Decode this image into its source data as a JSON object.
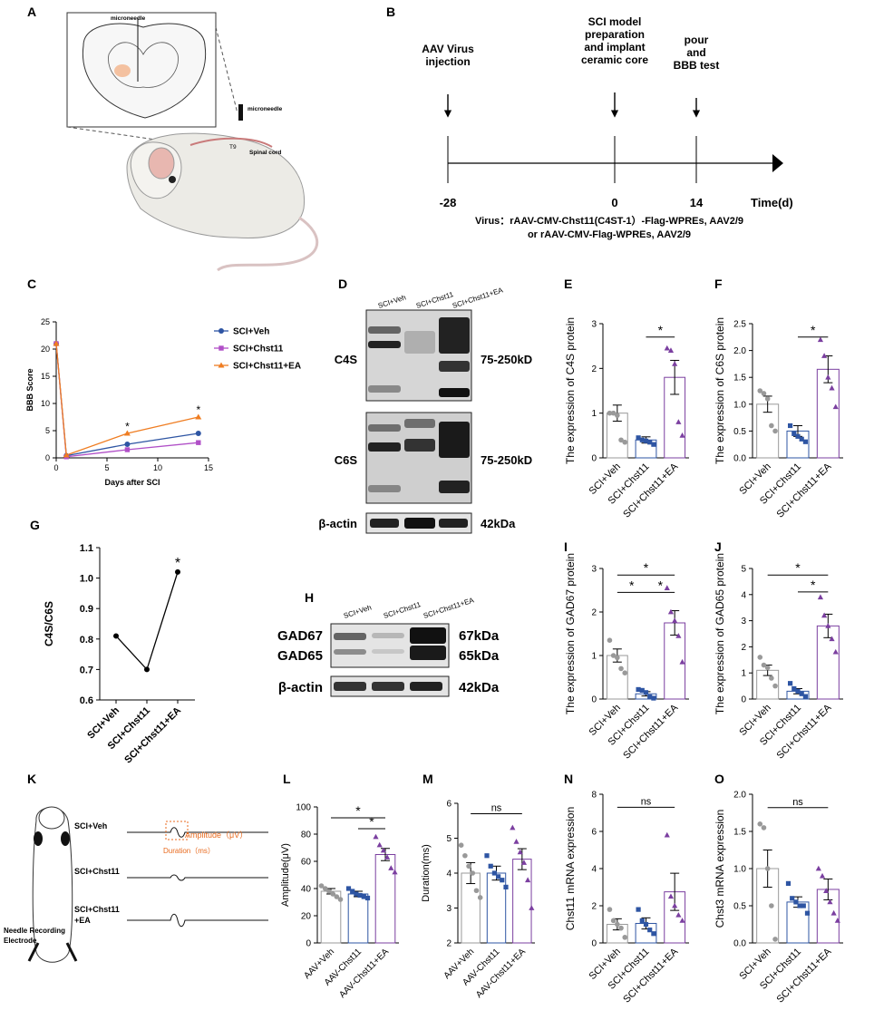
{
  "panel_letters": [
    "A",
    "B",
    "C",
    "D",
    "E",
    "F",
    "G",
    "H",
    "I",
    "J",
    "K",
    "L",
    "M",
    "N",
    "O"
  ],
  "colors": {
    "veh": "#2e55a3",
    "chst": "#b04fc7",
    "ea": "#ef7d22",
    "veh_pt": "#999999",
    "chst_pt": "#2e55a3",
    "ea_pt": "#7b3fa0",
    "recording": "#e86a1e",
    "axis": "#000000"
  },
  "panel_a": {
    "labels": {
      "microneedle_top": "microneedle",
      "microneedle_side": "microneedle",
      "t9": "T9",
      "spinal_cord": "Spinal cord"
    }
  },
  "panel_b": {
    "events": [
      {
        "label": [
          "AAV Virus",
          "injection"
        ],
        "tick": "-28",
        "day": -28
      },
      {
        "label": [
          "SCI model",
          "preparation",
          "and implant",
          "ceramic core"
        ],
        "tick": "0",
        "day": 0
      },
      {
        "label": [
          "pour",
          "and",
          "BBB test"
        ],
        "tick": "14",
        "day": 14
      }
    ],
    "axis_label": "Time(d)",
    "virus_line1": "Virus：rAAV-CMV-Chst11(C4ST-1）-Flag-WPREs, AAV2/9",
    "virus_line2": "or rAAV-CMV-Flag-WPREs, AAV2/9"
  },
  "panel_c": {
    "chart_data": {
      "type": "line",
      "xlabel": "Days after SCI",
      "ylabel": "BBB Score",
      "xlim": [
        0,
        15
      ],
      "ylim": [
        0,
        25
      ],
      "xticks": [
        0,
        5,
        10,
        15
      ],
      "yticks": [
        0,
        5,
        10,
        15,
        20,
        25
      ],
      "legend_position": "right",
      "series": [
        {
          "name": "SCI+Veh",
          "key": "veh",
          "x": [
            0,
            1,
            7,
            14
          ],
          "y": [
            21,
            0.4,
            2.5,
            4.5
          ]
        },
        {
          "name": "SCI+Chst11",
          "key": "chst",
          "x": [
            0,
            1,
            7,
            14
          ],
          "y": [
            21,
            0.2,
            1.5,
            2.8
          ]
        },
        {
          "name": "SCI+Chst11+EA",
          "key": "ea",
          "x": [
            0,
            1,
            7,
            14
          ],
          "y": [
            21,
            0.5,
            4.5,
            7.5
          ]
        }
      ],
      "annotations": [
        {
          "x": 7,
          "y": 5.6,
          "text": "*"
        },
        {
          "x": 14,
          "y": 8.7,
          "text": "*"
        }
      ]
    }
  },
  "panel_d": {
    "lanes": [
      "SCI+Veh",
      "SCI+Chst11",
      "SCI+Chst11+EA"
    ],
    "bands": [
      {
        "name": "C4S",
        "size": "75-250kD"
      },
      {
        "name": "C6S",
        "size": "75-250kD"
      },
      {
        "name": "β-actin",
        "size": "42kDa"
      }
    ]
  },
  "panel_h": {
    "lanes": [
      "SCI+Veh",
      "SCI+Chst11",
      "SCI+Chst11+EA"
    ],
    "bands": [
      {
        "name": "GAD67",
        "size": "67kDa"
      },
      {
        "name": "GAD65",
        "size": "65kDa"
      },
      {
        "name": "β-actin",
        "size": "42kDa"
      }
    ]
  },
  "panel_g": {
    "chart_data": {
      "type": "line",
      "ylabel": "C4S/C6S",
      "categories": [
        "SCI+Veh",
        "SCI+Chst11",
        "SCI+Chst11+EA"
      ],
      "values": [
        0.81,
        0.7,
        1.02
      ],
      "ylim": [
        0.6,
        1.1
      ],
      "yticks": [
        "0.6",
        "0.7",
        "0.8",
        "0.9",
        "1.0",
        "1.1"
      ],
      "annotations": [
        {
          "index": 2,
          "text": "*"
        }
      ]
    }
  },
  "bar_charts": [
    {
      "id": "E",
      "ylabel": "The expression of C4S protein",
      "categories": [
        "SCI+Veh",
        "SCI+Chst11",
        "SCI+Chst11+EA"
      ],
      "means": [
        1.0,
        0.4,
        1.8
      ],
      "sem": [
        0.18,
        0.07,
        0.38
      ],
      "ylim": [
        0,
        3
      ],
      "yticks": [
        "0",
        "1",
        "2",
        "3"
      ],
      "points": [
        [
          1.0,
          1.0,
          0.95,
          0.4,
          0.35
        ],
        [
          0.45,
          0.4,
          0.38,
          0.35,
          0.3
        ],
        [
          2.45,
          2.4,
          2.1,
          0.8,
          0.5
        ]
      ],
      "sig": [
        {
          "from": 1,
          "to": 2,
          "y": 2.7,
          "text": "*"
        }
      ]
    },
    {
      "id": "F",
      "ylabel": "The expression of C6S protein",
      "categories": [
        "SCI+Veh",
        "SCI+Chst11",
        "SCI+Chst11+EA"
      ],
      "means": [
        1.0,
        0.5,
        1.65
      ],
      "sem": [
        0.15,
        0.1,
        0.25
      ],
      "ylim": [
        0,
        2.5
      ],
      "yticks": [
        "0.0",
        "0.5",
        "1.0",
        "1.5",
        "2.0",
        "2.5"
      ],
      "points": [
        [
          1.25,
          1.2,
          1.1,
          0.6,
          0.5
        ],
        [
          0.6,
          0.45,
          0.4,
          0.35,
          0.3
        ],
        [
          2.2,
          1.9,
          1.5,
          1.3,
          0.95
        ]
      ],
      "sig": [
        {
          "from": 1,
          "to": 2,
          "y": 2.25,
          "text": "*"
        }
      ]
    },
    {
      "id": "I",
      "ylabel": "The expression of GAD67 protein",
      "categories": [
        "SCI+Veh",
        "SCI+Chst11",
        "SCI+Chst11+EA"
      ],
      "means": [
        1.0,
        0.12,
        1.75
      ],
      "sem": [
        0.15,
        0.05,
        0.28
      ],
      "ylim": [
        0,
        3
      ],
      "yticks": [
        "0",
        "1",
        "2",
        "3"
      ],
      "points": [
        [
          1.35,
          1.0,
          0.95,
          0.7,
          0.6
        ],
        [
          0.22,
          0.2,
          0.15,
          0.05,
          0.02
        ],
        [
          2.55,
          2.0,
          1.8,
          1.45,
          0.85
        ]
      ],
      "sig": [
        {
          "from": 0,
          "to": 2,
          "y": 2.85,
          "text": "*"
        },
        {
          "from": 0,
          "to": 1,
          "y": 2.45,
          "text": "*"
        },
        {
          "from": 1,
          "to": 2,
          "y": 2.45,
          "text": "*"
        }
      ]
    },
    {
      "id": "J",
      "ylabel": "The expression of GAD65 protein",
      "categories": [
        "SCI+Veh",
        "SCI+Chst11",
        "SCI+Chst11+EA"
      ],
      "means": [
        1.1,
        0.3,
        2.8
      ],
      "sem": [
        0.2,
        0.1,
        0.45
      ],
      "ylim": [
        0,
        5
      ],
      "yticks": [
        "0",
        "1",
        "2",
        "3",
        "4",
        "5"
      ],
      "points": [
        [
          1.6,
          1.3,
          1.2,
          0.8,
          0.5
        ],
        [
          0.6,
          0.4,
          0.3,
          0.2,
          0.1
        ],
        [
          3.9,
          3.2,
          2.8,
          2.3,
          1.8
        ]
      ],
      "sig": [
        {
          "from": 0,
          "to": 2,
          "y": 4.75,
          "text": "*"
        },
        {
          "from": 1,
          "to": 2,
          "y": 4.1,
          "text": "*"
        }
      ]
    },
    {
      "id": "L",
      "ylabel": "Amplitude(μV)",
      "categories": [
        "AAV+Veh",
        "AAV-Chst11",
        "AAV-Chst11+EA"
      ],
      "means": [
        38,
        36,
        65
      ],
      "sem": [
        2,
        2,
        4.5
      ],
      "ylim": [
        0,
        100
      ],
      "yticks": [
        "0",
        "20",
        "40",
        "60",
        "80",
        "100"
      ],
      "points": [
        [
          42,
          40,
          38,
          36,
          34,
          32
        ],
        [
          40,
          38,
          36,
          35,
          34,
          33
        ],
        [
          78,
          72,
          68,
          63,
          55,
          52
        ]
      ],
      "sig": [
        {
          "from": 0,
          "to": 2,
          "y": 92,
          "text": "*"
        },
        {
          "from": 1,
          "to": 2,
          "y": 84,
          "text": "*"
        }
      ]
    },
    {
      "id": "M",
      "ylabel": "Duration(ms)",
      "categories": [
        "AAV+Veh",
        "AAV-Chst11",
        "AAV-Chst11+EA"
      ],
      "means": [
        4.0,
        4.0,
        4.4
      ],
      "sem": [
        0.3,
        0.2,
        0.3
      ],
      "ylim": [
        2,
        6
      ],
      "yticks": [
        "2",
        "3",
        "4",
        "5",
        "6"
      ],
      "points": [
        [
          4.8,
          4.5,
          4.2,
          4.0,
          3.5,
          3.3
        ],
        [
          4.5,
          4.2,
          4.0,
          3.9,
          3.8,
          3.6
        ],
        [
          5.3,
          4.9,
          4.6,
          4.3,
          3.8,
          3.0
        ]
      ],
      "sig": [
        {
          "from": 0,
          "to": 2,
          "y": 5.7,
          "text": "ns"
        }
      ]
    },
    {
      "id": "N",
      "ylabel": "Chst11 mRNA expression",
      "categories": [
        "SCI+Veh",
        "SCI+Chst11",
        "SCI+Chst11+EA"
      ],
      "means": [
        1.0,
        1.05,
        2.75
      ],
      "sem": [
        0.3,
        0.3,
        1.0
      ],
      "ylim": [
        0,
        8
      ],
      "yticks": [
        "0",
        "2",
        "4",
        "6",
        "8"
      ],
      "points": [
        [
          1.8,
          1.2,
          1.0,
          0.8,
          0.3
        ],
        [
          1.8,
          1.2,
          1.0,
          0.7,
          0.5
        ],
        [
          5.8,
          2.5,
          2.0,
          1.5,
          1.2
        ]
      ],
      "sig": [
        {
          "from": 0,
          "to": 2,
          "y": 7.3,
          "text": "ns"
        }
      ]
    },
    {
      "id": "O",
      "ylabel": "Chst3 mRNA expression",
      "categories": [
        "SCI+Veh",
        "SCI+Chst11",
        "SCI+Chst11+EA"
      ],
      "means": [
        1.0,
        0.55,
        0.72
      ],
      "sem": [
        0.25,
        0.07,
        0.14
      ],
      "ylim": [
        0,
        2
      ],
      "yticks": [
        "0.0",
        "0.5",
        "1.0",
        "1.5",
        "2.0"
      ],
      "points": [
        [
          1.6,
          1.55,
          1.0,
          0.5,
          0.05
        ],
        [
          0.8,
          0.6,
          0.55,
          0.5,
          0.5,
          0.4
        ],
        [
          1.0,
          0.9,
          0.7,
          0.55,
          0.4,
          0.3
        ]
      ],
      "sig": [
        {
          "from": 0,
          "to": 2,
          "y": 1.82,
          "text": "ns"
        }
      ]
    }
  ],
  "panel_k": {
    "groups": [
      {
        "label": [
          "SCI+Veh"
        ]
      },
      {
        "label": [
          "SCI+Chst11"
        ]
      },
      {
        "label": [
          "SCI+Chst11",
          "+EA"
        ]
      }
    ],
    "amplitude_label": "Amplitude（μV）",
    "duration_label": "Duration（ms）",
    "electrode_label": [
      "Needle Recording",
      "Electrode"
    ]
  }
}
